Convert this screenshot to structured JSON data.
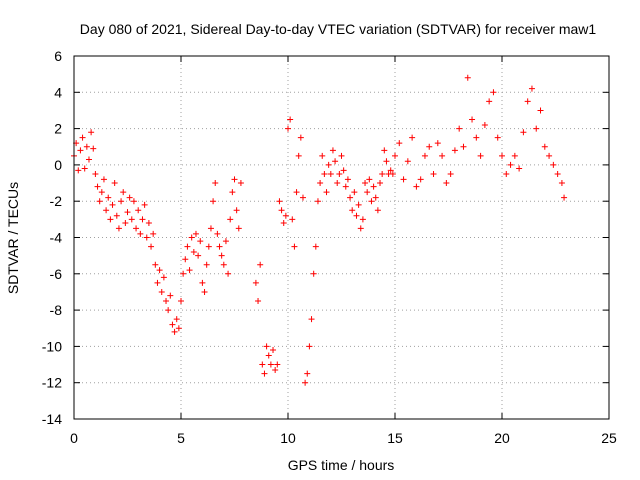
{
  "chart_data": {
    "type": "scatter",
    "title": "Day 080 of 2021, Sidereal Day-to-day VTEC variation (SDTVAR) for receiver maw1",
    "xlabel": "GPS time / hours",
    "ylabel": "SDTVAR / TECUs",
    "xlim": [
      0,
      25
    ],
    "ylim": [
      -14,
      6
    ],
    "xticks": [
      0,
      5,
      10,
      15,
      20,
      25
    ],
    "xtick_labels": [
      "0",
      "5",
      "10",
      "15",
      "20",
      "25"
    ],
    "yticks": [
      6,
      4,
      2,
      0,
      -2,
      -4,
      -6,
      -8,
      -10,
      -12,
      -14
    ],
    "ytick_labels": [
      "6",
      "4",
      "2",
      "0",
      "-2",
      "-4",
      "-6",
      "-8",
      "-10",
      "-12",
      "-14"
    ],
    "grid": true,
    "marker": "+",
    "color": "#ff0000",
    "series": [
      {
        "name": "maw1",
        "x": [
          0.0,
          0.1,
          0.2,
          0.3,
          0.4,
          0.5,
          0.6,
          0.7,
          0.8,
          0.9,
          1.0,
          1.1,
          1.2,
          1.3,
          1.4,
          1.5,
          1.6,
          1.7,
          1.8,
          1.9,
          2.0,
          2.1,
          2.2,
          2.3,
          2.4,
          2.5,
          2.6,
          2.7,
          2.8,
          2.9,
          3.0,
          3.1,
          3.2,
          3.3,
          3.4,
          3.5,
          3.6,
          3.7,
          3.8,
          3.9,
          4.0,
          4.1,
          4.2,
          4.3,
          4.4,
          4.5,
          4.6,
          4.7,
          4.8,
          4.9,
          5.0,
          5.1,
          5.2,
          5.3,
          5.4,
          5.5,
          5.6,
          5.7,
          5.8,
          5.9,
          6.0,
          6.1,
          6.2,
          6.3,
          6.4,
          6.5,
          6.6,
          6.7,
          6.8,
          6.9,
          7.0,
          7.1,
          7.2,
          7.3,
          7.4,
          7.5,
          7.6,
          7.7,
          7.8,
          8.5,
          8.6,
          8.7,
          8.8,
          8.9,
          9.0,
          9.1,
          9.2,
          9.3,
          9.4,
          9.5,
          9.6,
          9.7,
          9.8,
          9.9,
          10.0,
          10.1,
          10.2,
          10.3,
          10.4,
          10.5,
          10.6,
          10.7,
          10.8,
          10.9,
          11.0,
          11.1,
          11.2,
          11.3,
          11.4,
          11.5,
          11.6,
          11.7,
          11.8,
          11.9,
          12.0,
          12.1,
          12.2,
          12.3,
          12.4,
          12.5,
          12.6,
          12.7,
          12.8,
          12.9,
          13.0,
          13.1,
          13.2,
          13.3,
          13.4,
          13.5,
          13.6,
          13.7,
          13.8,
          13.9,
          14.0,
          14.1,
          14.2,
          14.3,
          14.4,
          14.5,
          14.6,
          14.7,
          14.8,
          14.9,
          15.0,
          15.2,
          15.4,
          15.6,
          15.8,
          16.0,
          16.2,
          16.4,
          16.6,
          16.8,
          17.0,
          17.2,
          17.4,
          17.6,
          17.8,
          18.0,
          18.2,
          18.4,
          18.6,
          18.8,
          19.0,
          19.2,
          19.4,
          19.6,
          19.8,
          20.0,
          20.2,
          20.4,
          20.6,
          20.8,
          21.0,
          21.2,
          21.4,
          21.6,
          21.8,
          22.0,
          22.2,
          22.4,
          22.6,
          22.8,
          22.9
        ],
        "y": [
          0.5,
          1.2,
          -0.3,
          0.8,
          1.5,
          -0.2,
          1.0,
          0.3,
          1.8,
          0.9,
          -0.5,
          -1.2,
          -2.0,
          -1.5,
          -0.8,
          -2.5,
          -1.8,
          -3.0,
          -2.2,
          -1.0,
          -2.8,
          -3.5,
          -2.0,
          -1.5,
          -3.2,
          -2.6,
          -1.8,
          -3.0,
          -2.0,
          -3.5,
          -2.5,
          -3.8,
          -3.0,
          -2.2,
          -4.0,
          -3.2,
          -4.5,
          -3.8,
          -5.5,
          -6.5,
          -5.8,
          -7.0,
          -6.2,
          -7.5,
          -8.0,
          -7.2,
          -8.8,
          -9.2,
          -8.5,
          -9.0,
          -7.5,
          -6.0,
          -5.2,
          -4.5,
          -5.8,
          -4.0,
          -4.8,
          -3.8,
          -5.0,
          -4.2,
          -6.5,
          -7.0,
          -5.5,
          -4.5,
          -3.5,
          -2.0,
          -1.0,
          -3.8,
          -4.5,
          -5.0,
          -5.5,
          -4.2,
          -6.0,
          -3.0,
          -1.5,
          -0.8,
          -2.5,
          -3.5,
          -1.0,
          -6.5,
          -7.5,
          -5.5,
          -11.0,
          -11.5,
          -10.0,
          -10.5,
          -11.0,
          -10.2,
          -11.3,
          -11.0,
          -2.0,
          -2.5,
          -3.2,
          -2.8,
          2.0,
          2.5,
          -3.0,
          -4.5,
          -1.5,
          0.5,
          1.5,
          -1.8,
          -12.0,
          -11.5,
          -10.0,
          -8.5,
          -6.0,
          -4.5,
          -2.0,
          -1.0,
          0.5,
          -0.5,
          -1.5,
          0.0,
          -0.5,
          0.8,
          0.2,
          -1.0,
          -0.5,
          0.5,
          -0.3,
          -1.2,
          -0.8,
          -1.8,
          -2.5,
          -1.5,
          -2.8,
          -2.2,
          -3.5,
          -3.0,
          -1.0,
          -1.5,
          -0.8,
          -2.0,
          -1.2,
          -1.8,
          -2.5,
          -1.0,
          -0.5,
          0.8,
          0.2,
          -0.5,
          -0.3,
          -0.5,
          0.5,
          1.2,
          -0.8,
          0.2,
          1.5,
          -1.2,
          -0.8,
          0.5,
          1.0,
          -0.5,
          1.2,
          0.5,
          -1.0,
          -0.5,
          0.8,
          2.0,
          1.0,
          4.8,
          2.5,
          1.5,
          0.5,
          2.2,
          3.5,
          4.0,
          1.5,
          0.5,
          -0.5,
          0.0,
          0.5,
          -0.2,
          1.8,
          3.5,
          4.2,
          2.0,
          3.0,
          1.0,
          0.5,
          0.0,
          -0.5,
          -1.0,
          -1.8
        ]
      }
    ]
  }
}
